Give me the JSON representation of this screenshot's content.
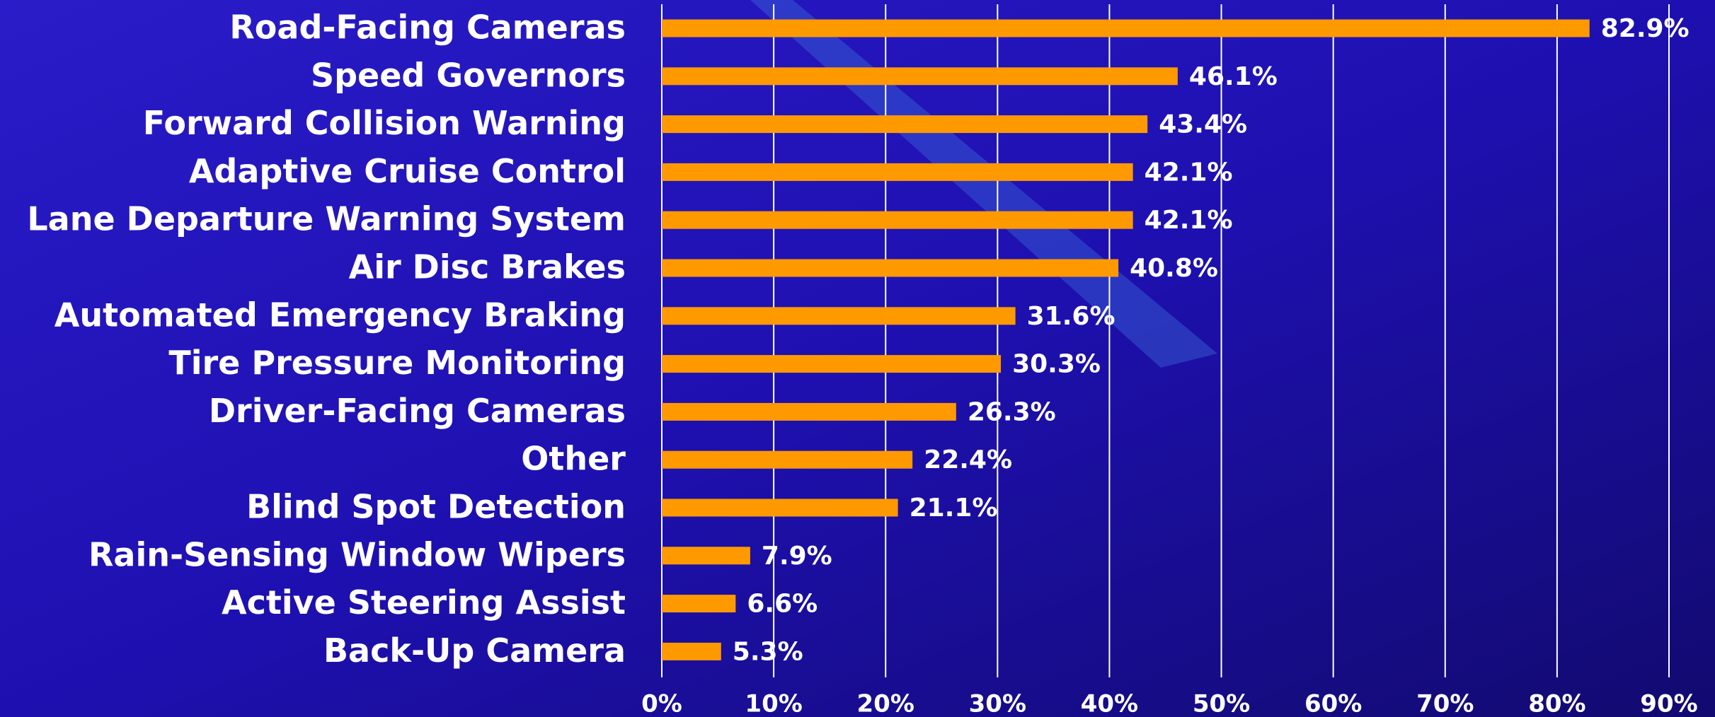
{
  "chart_data": {
    "type": "bar",
    "orientation": "horizontal",
    "categories": [
      "Road-Facing Cameras",
      "Speed Governors",
      "Forward Collision Warning",
      "Adaptive Cruise Control",
      "Lane Departure Warning System",
      "Air Disc Brakes",
      "Automated Emergency Braking",
      "Tire Pressure Monitoring",
      "Driver-Facing Cameras",
      "Other",
      "Blind Spot Detection",
      "Rain-Sensing Window Wipers",
      "Active Steering Assist",
      "Back-Up Camera"
    ],
    "values": [
      82.9,
      46.1,
      43.4,
      42.1,
      42.1,
      40.8,
      31.6,
      30.3,
      26.3,
      22.4,
      21.1,
      7.9,
      6.6,
      5.3
    ],
    "value_labels": [
      "82.9%",
      "46.1%",
      "43.4%",
      "42.1%",
      "42.1%",
      "40.8%",
      "31.6%",
      "30.3%",
      "26.3%",
      "22.4%",
      "21.1%",
      "7.9%",
      "6.6%",
      "5.3%"
    ],
    "color": "#ff9900",
    "xlim": [
      0,
      90
    ],
    "xticks": [
      {
        "value": 0,
        "label": "0%"
      },
      {
        "value": 10,
        "label": "10%"
      },
      {
        "value": 20,
        "label": "20%"
      },
      {
        "value": 30,
        "label": "30%"
      },
      {
        "value": 40,
        "label": "40%"
      },
      {
        "value": 50,
        "label": "50%"
      },
      {
        "value": 60,
        "label": "60%"
      },
      {
        "value": 70,
        "label": "70%"
      },
      {
        "value": 80,
        "label": "80%"
      },
      {
        "value": 90,
        "label": "90%"
      }
    ],
    "grid": true
  }
}
